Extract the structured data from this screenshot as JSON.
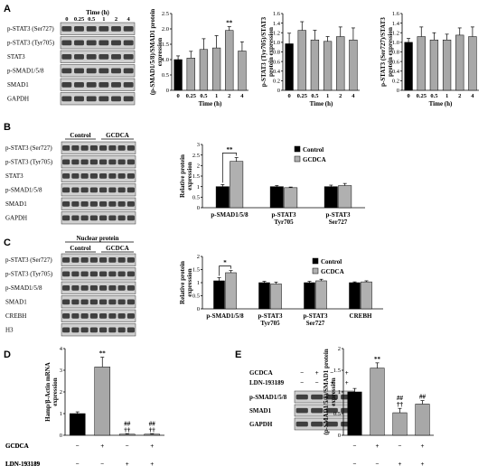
{
  "panels": [
    {
      "letter": "A"
    },
    {
      "letter": "B"
    },
    {
      "letter": "C"
    },
    {
      "letter": "D"
    },
    {
      "letter": "E"
    }
  ],
  "blots": {
    "A": {
      "header": "Time (h)",
      "lanes": [
        "0",
        "0.25",
        "0.5",
        "1",
        "2",
        "4"
      ],
      "rows": [
        "p-STAT3 (Ser727)",
        "p-STAT3 (Tyr705)",
        "STAT3",
        "p-SMAD1/5/8",
        "SMAD1",
        "GAPDH"
      ]
    },
    "B": {
      "groups": [
        "Control",
        "GCDCA"
      ],
      "rows": [
        "p-STAT3 (Ser727)",
        "p-STAT3 (Tyr705)",
        "STAT3",
        "p-SMAD1/5/8",
        "SMAD1",
        "GAPDH"
      ]
    },
    "C": {
      "header": "Nuclear protein",
      "groups": [
        "Control",
        "GCDCA"
      ],
      "rows": [
        "p-STAT3 (Ser727)",
        "p-STAT3 (Tyr705)",
        "p-SMAD1/5/8",
        "SMAD1",
        "CREBH",
        "H3"
      ]
    },
    "E": {
      "treatments": [
        {
          "label": "GCDCA",
          "signs": [
            "−",
            "+",
            "−",
            "+"
          ]
        },
        {
          "label": "LDN-193189",
          "signs": [
            "−",
            "−",
            "+",
            "+"
          ]
        }
      ],
      "rows": [
        "p-SMAD1/5/8",
        "SMAD1",
        "GAPDH"
      ]
    }
  },
  "chart_data": [
    {
      "id": "A1",
      "type": "bar",
      "categories": [
        "0",
        "0.25",
        "0.5",
        "1",
        "2",
        "4"
      ],
      "values": [
        1.0,
        1.05,
        1.33,
        1.38,
        1.95,
        1.28
      ],
      "errors": [
        0.12,
        0.22,
        0.35,
        0.4,
        0.12,
        0.3
      ],
      "colors": [
        "#000000",
        "#a8a8a8",
        "#a8a8a8",
        "#a8a8a8",
        "#a8a8a8",
        "#a8a8a8"
      ],
      "annotations": [
        "",
        "",
        "",
        "",
        "**",
        ""
      ],
      "xlabel": "Time (h)",
      "ylabel": "(p-SMAD1/5/8)/SMAD1 protein expression",
      "ylim": [
        0,
        2.5
      ],
      "yticks": [
        "0",
        "0.5",
        "1.0",
        "1.5",
        "2.0",
        "2.5"
      ]
    },
    {
      "id": "A2",
      "type": "bar",
      "categories": [
        "0",
        "0.25",
        "0.5",
        "1",
        "2",
        "4"
      ],
      "values": [
        0.97,
        1.25,
        1.05,
        1.02,
        1.12,
        1.05
      ],
      "errors": [
        0.22,
        0.18,
        0.2,
        0.1,
        0.2,
        0.25
      ],
      "colors": [
        "#000000",
        "#a8a8a8",
        "#a8a8a8",
        "#a8a8a8",
        "#a8a8a8",
        "#a8a8a8"
      ],
      "annotations": [
        "",
        "",
        "",
        "",
        "",
        ""
      ],
      "xlabel": "Time (h)",
      "ylabel": "p-STAT3 (Tyr705)/STAT3 protein expression",
      "ylim": [
        0,
        1.6
      ],
      "yticks": [
        "0",
        "0.2",
        "0.4",
        "0.6",
        "0.8",
        "1.0",
        "1.2",
        "1.4",
        "1.6"
      ]
    },
    {
      "id": "A3",
      "type": "bar",
      "categories": [
        "0",
        "0.25",
        "0.5",
        "1",
        "2",
        "4"
      ],
      "values": [
        1.0,
        1.12,
        1.05,
        1.05,
        1.15,
        1.12
      ],
      "errors": [
        0.08,
        0.2,
        0.15,
        0.12,
        0.15,
        0.2
      ],
      "colors": [
        "#000000",
        "#a8a8a8",
        "#a8a8a8",
        "#a8a8a8",
        "#a8a8a8",
        "#a8a8a8"
      ],
      "annotations": [
        "",
        "",
        "",
        "",
        "",
        ""
      ],
      "xlabel": "Time (h)",
      "ylabel": "p-STAT3 (Ser727)/STAT3 protein expression",
      "ylim": [
        0,
        1.6
      ],
      "yticks": [
        "0",
        "0.2",
        "0.4",
        "0.6",
        "0.8",
        "1.0",
        "1.2",
        "1.4",
        "1.6"
      ]
    },
    {
      "id": "B",
      "type": "bar",
      "categories": [
        "p-SMAD1/5/8",
        "p-STAT3 Tyr705",
        "p-STAT3 Ser727"
      ],
      "category_lines": [
        [
          "p-SMAD1/5/8"
        ],
        [
          "p-STAT3",
          "Tyr705"
        ],
        [
          "p-STAT3",
          "Ser727"
        ]
      ],
      "series": [
        {
          "name": "Control",
          "values": [
            1.0,
            1.0,
            1.0
          ],
          "errors": [
            0.1,
            0.05,
            0.07
          ],
          "color": "#000000"
        },
        {
          "name": "GCDCA",
          "values": [
            2.2,
            0.95,
            1.05
          ],
          "errors": [
            0.18,
            0.03,
            0.1
          ],
          "color": "#b0b0b0"
        }
      ],
      "annotations": [
        {
          "category": 0,
          "text": "**"
        }
      ],
      "ylabel": "Relative protein expression",
      "ylim": [
        0,
        3
      ],
      "yticks": [
        "0",
        "0.5",
        "1",
        "1.5",
        "2",
        "2.5",
        "3"
      ],
      "legend": "top-right"
    },
    {
      "id": "C",
      "type": "bar",
      "categories": [
        "p-SMAD1/5/8",
        "p-STAT3 Tyr705",
        "p-STAT3 Ser727",
        "CREBH"
      ],
      "category_lines": [
        [
          "p-SMAD1/5/8"
        ],
        [
          "p-STAT3",
          "Tyr705"
        ],
        [
          "p-STAT3",
          "Ser727"
        ],
        [
          "CREBH"
        ]
      ],
      "series": [
        {
          "name": "Control",
          "values": [
            1.07,
            1.0,
            1.0,
            1.0
          ],
          "errors": [
            0.12,
            0.05,
            0.05,
            0.03
          ],
          "color": "#000000"
        },
        {
          "name": "GCDCA",
          "values": [
            1.38,
            0.95,
            1.07,
            1.03
          ],
          "errors": [
            0.08,
            0.07,
            0.06,
            0.04
          ],
          "color": "#b0b0b0"
        }
      ],
      "annotations": [
        {
          "category": 0,
          "text": "*"
        }
      ],
      "ylabel": "Relative protein expression",
      "ylim": [
        0,
        2
      ],
      "yticks": [
        "0",
        "0.5",
        "1",
        "1.5",
        "2"
      ],
      "legend": "top-right"
    },
    {
      "id": "D",
      "type": "bar",
      "categories": [
        "1",
        "2",
        "3",
        "4"
      ],
      "values": [
        1.0,
        3.15,
        0.05,
        0.05
      ],
      "errors": [
        0.08,
        0.45,
        0.02,
        0.02
      ],
      "colors": [
        "#000000",
        "#a8a8a8",
        "#a8a8a8",
        "#a8a8a8"
      ],
      "annotations": [
        [],
        [
          "**"
        ],
        [
          "##",
          "††"
        ],
        [
          "##",
          "††"
        ]
      ],
      "ylabel": "Hamp/β-Actin mRNA expression",
      "ylim": [
        0,
        4
      ],
      "yticks": [
        "0",
        "1",
        "2",
        "3",
        "4"
      ],
      "treatments": [
        {
          "label": "GCDCA",
          "signs": [
            "−",
            "+",
            "−",
            "+"
          ]
        },
        {
          "label": "LDN-193189",
          "signs": [
            "−",
            "−",
            "+",
            "+"
          ]
        }
      ]
    },
    {
      "id": "E",
      "type": "bar",
      "categories": [
        "1",
        "2",
        "3",
        "4"
      ],
      "values": [
        1.0,
        1.55,
        0.52,
        0.72
      ],
      "errors": [
        0.08,
        0.12,
        0.1,
        0.08
      ],
      "colors": [
        "#000000",
        "#a8a8a8",
        "#a8a8a8",
        "#a8a8a8"
      ],
      "annotations": [
        [],
        [
          "**"
        ],
        [
          "##",
          "††"
        ],
        [
          "##"
        ]
      ],
      "ylabel": "(p-SMAD1/5/8)/SMAD1 protein expression",
      "ylim": [
        0,
        2
      ],
      "yticks": [
        "0",
        "0.5",
        "1",
        "1.5",
        "2"
      ],
      "treatments": [
        {
          "label": "GCDCA",
          "signs": [
            "−",
            "+",
            "−",
            "+"
          ]
        },
        {
          "label": "LDN-193189",
          "signs": [
            "−",
            "−",
            "+",
            "+"
          ]
        }
      ]
    }
  ]
}
